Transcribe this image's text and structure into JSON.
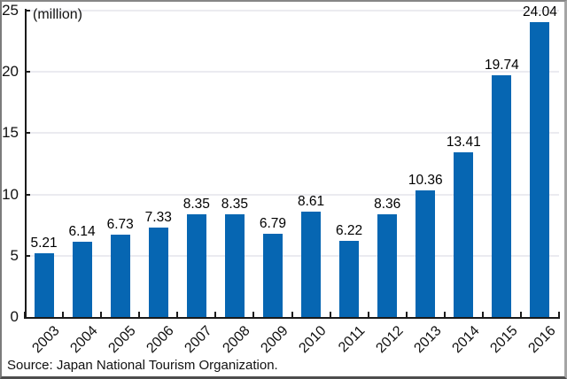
{
  "chart_data": {
    "type": "bar",
    "title": "",
    "unit_label": "(million)",
    "categories": [
      "2003",
      "2004",
      "2005",
      "2006",
      "2007",
      "2008",
      "2009",
      "2010",
      "2011",
      "2012",
      "2013",
      "2014",
      "2015",
      "2016"
    ],
    "values": [
      5.21,
      6.14,
      6.73,
      7.33,
      8.35,
      8.35,
      6.79,
      8.61,
      6.22,
      8.36,
      10.36,
      13.41,
      19.74,
      24.04
    ],
    "value_labels": [
      "5.21",
      "6.14",
      "6.73",
      "7.33",
      "8.35",
      "8.35",
      "6.79",
      "8.61",
      "6.22",
      "8.36",
      "10.36",
      "13.41",
      "19.74",
      "24.04"
    ],
    "ylim": [
      0,
      25
    ],
    "y_ticks": [
      0,
      5,
      10,
      15,
      20,
      25
    ],
    "grid": true,
    "legend": "none",
    "x_tick_rotation": 45,
    "colors": {
      "bar": "#0666b2",
      "axis": "#1a1a1a",
      "gridline": "#ebebf0",
      "text": "#111111"
    },
    "source": "Source: Japan National Tourism Organization."
  }
}
